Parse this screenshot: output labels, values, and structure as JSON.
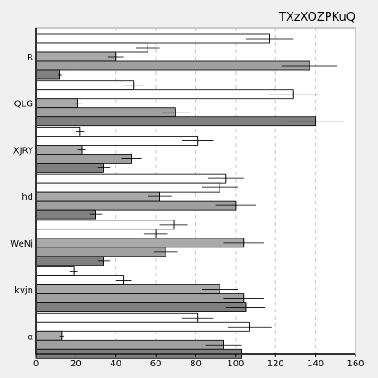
{
  "chart_data": {
    "type": "bar",
    "orientation": "horizontal",
    "title": "TXzXOZPKuQ",
    "xlabel": "",
    "ylabel": "",
    "xlim": [
      0,
      160
    ],
    "xticks": [
      0,
      20,
      40,
      60,
      80,
      100,
      120,
      140,
      160
    ],
    "grid": true,
    "categories": [
      "R",
      "QLG",
      "XJRY",
      "hd",
      "WeNj",
      "kvjn",
      "α"
    ],
    "series": [
      {
        "color": "#ffffff",
        "values": [
          117,
          49,
          22,
          95,
          69,
          19,
          81
        ],
        "errors": [
          12,
          5,
          2,
          9,
          7,
          2,
          8
        ]
      },
      {
        "color": "#ffffff",
        "values": [
          56,
          129,
          81,
          92,
          60,
          44,
          107
        ],
        "errors": [
          6,
          13,
          8,
          9,
          6,
          4,
          11
        ]
      },
      {
        "color": "#a9a9a9",
        "values": [
          40,
          21,
          23,
          62,
          104,
          92,
          13
        ],
        "errors": [
          4,
          2,
          2,
          6,
          10,
          9,
          1
        ]
      },
      {
        "color": "#a0a0a0",
        "values": [
          137,
          70,
          48,
          100,
          65,
          104,
          94
        ],
        "errors": [
          14,
          7,
          5,
          10,
          6,
          10,
          9
        ]
      },
      {
        "color": "#808080",
        "values": [
          12,
          140,
          34,
          30,
          34,
          105,
          103
        ],
        "errors": [
          1,
          14,
          3,
          3,
          3,
          10,
          10
        ]
      }
    ]
  }
}
